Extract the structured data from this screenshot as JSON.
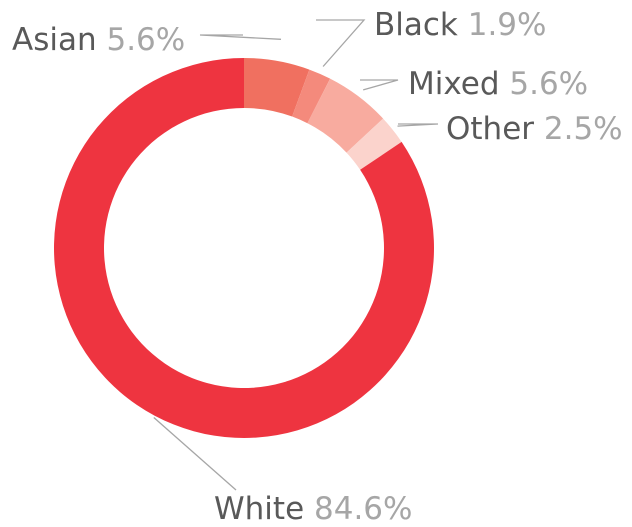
{
  "chart_data": {
    "type": "pie",
    "donut": true,
    "title": "",
    "start": "top",
    "direction": "clockwise",
    "slices": [
      {
        "label": "Asian",
        "value": 5.6,
        "value_label": "5.6%",
        "color": "#f07060"
      },
      {
        "label": "Black",
        "value": 1.9,
        "value_label": "1.9%",
        "color": "#f48a7c"
      },
      {
        "label": "Mixed",
        "value": 5.6,
        "value_label": "5.6%",
        "color": "#f8ab9f"
      },
      {
        "label": "Other",
        "value": 2.5,
        "value_label": "2.5%",
        "color": "#fbd3cc"
      },
      {
        "label": "White",
        "value": 84.6,
        "value_label": "84.6%",
        "color": "#ee3440"
      }
    ]
  }
}
